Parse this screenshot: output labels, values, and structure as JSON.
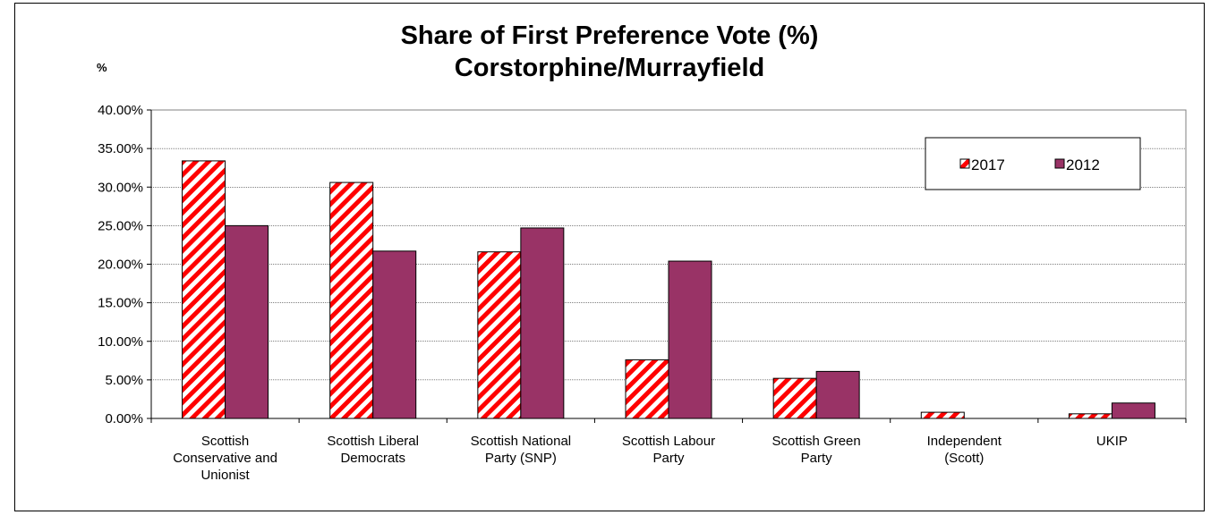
{
  "chart_data": {
    "type": "bar",
    "title": "Share of First Preference Vote (%)",
    "subtitle": "Corstorphine/Murrayfield",
    "ylabel": "%",
    "xlabel": "",
    "ylim": [
      0,
      40
    ],
    "yticks": [
      "0.00%",
      "5.00%",
      "10.00%",
      "15.00%",
      "20.00%",
      "25.00%",
      "30.00%",
      "35.00%",
      "40.00%"
    ],
    "grid": true,
    "legend_position": "top-right",
    "categories": [
      [
        "Scottish",
        "Conservative and",
        "Unionist"
      ],
      [
        "Scottish Liberal",
        "Democrats"
      ],
      [
        "Scottish National",
        "Party (SNP)"
      ],
      [
        "Scottish Labour",
        "Party"
      ],
      [
        "Scottish Green",
        "Party"
      ],
      [
        "Independent",
        "(Scott)"
      ],
      [
        "UKIP"
      ]
    ],
    "series": [
      {
        "name": "2017",
        "pattern": "red-white-diagonal-stripes",
        "color": "#ff0000",
        "values": [
          33.4,
          30.6,
          21.6,
          7.6,
          5.2,
          0.8,
          0.6
        ]
      },
      {
        "name": "2012",
        "pattern": "solid",
        "color": "#993366",
        "values": [
          25.0,
          21.7,
          24.7,
          20.4,
          6.1,
          0.0,
          2.0
        ]
      }
    ]
  }
}
